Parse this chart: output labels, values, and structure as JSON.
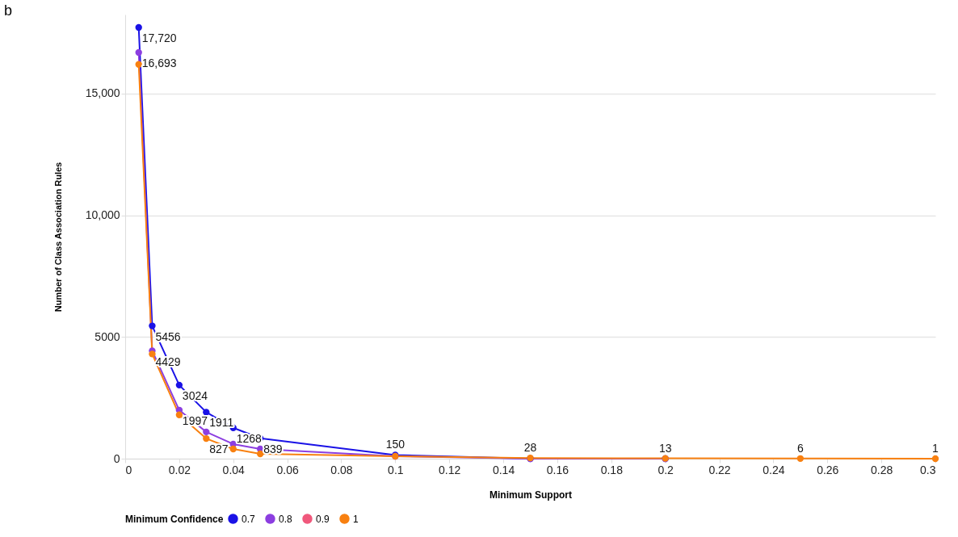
{
  "chart_data": {
    "type": "line",
    "title": "b",
    "xlabel": "Minimum Support",
    "ylabel": "Number of Class Association Rules",
    "legend_title": "Minimum Confidence",
    "legend": "bottom",
    "grid": "y",
    "marker": "circle",
    "line_style": "solid",
    "x": [
      0.005,
      0.01,
      0.02,
      0.03,
      0.04,
      0.05,
      0.1,
      0.15,
      0.2,
      0.25,
      0.3
    ],
    "xlim": [
      0,
      0.3
    ],
    "xticks": [
      0,
      0.02,
      0.04,
      0.06,
      0.08,
      0.1,
      0.12,
      0.14,
      0.16,
      0.18,
      0.2,
      0.22,
      0.24,
      0.26,
      0.28,
      0.3
    ],
    "ylim": [
      0,
      18250
    ],
    "yticks": [
      0,
      5000,
      {
        "value": 10000,
        "label": "10,000"
      },
      {
        "value": 15000,
        "label": "15,000"
      }
    ],
    "series": [
      {
        "name": "0.7",
        "color": "#1a12e6",
        "values": [
          17720,
          5456,
          3024,
          1911,
          1268,
          839,
          150,
          0,
          0,
          null,
          null
        ],
        "value_labels": [
          "17,720",
          "5456",
          "3024",
          "1911",
          "1268",
          "839",
          "150",
          null,
          null,
          null,
          null
        ]
      },
      {
        "name": "0.8",
        "color": "#8c3ee0",
        "values": [
          16693,
          4429,
          1997,
          1100,
          600,
          400,
          100,
          0,
          0,
          null,
          null
        ],
        "value_labels": [
          "16,693",
          "4429",
          "1997",
          null,
          null,
          null,
          null,
          null,
          null,
          null,
          null
        ]
      },
      {
        "name": "0.9",
        "color": "#f0587c",
        "values": [
          null,
          null,
          null,
          null,
          null,
          null,
          null,
          null,
          null,
          null,
          null
        ]
      },
      {
        "name": "1",
        "color": "#f88010",
        "values": [
          16200,
          4300,
          1800,
          827,
          400,
          200,
          100,
          28,
          13,
          6,
          1
        ],
        "value_labels": [
          null,
          null,
          null,
          "827",
          null,
          null,
          null,
          "28",
          "13",
          "6",
          "1"
        ]
      }
    ]
  }
}
